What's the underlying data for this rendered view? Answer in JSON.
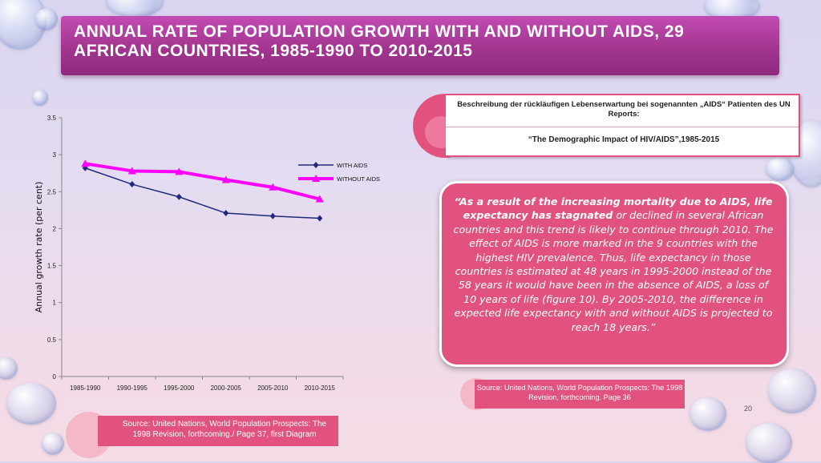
{
  "slide": {
    "title": "ANNUAL RATE OF POPULATION GROWTH WITH AND WITHOUT AIDS, 29 AFRICAN COUNTRIES, 1985-1990 TO 2010-2015",
    "page_number": "20"
  },
  "description": {
    "line1": "Beschreibung der rückläufigen Lebenserwartung bei sogenannten „AIDS“ Patienten des UN Reports:",
    "line2": "“The Demographic Impact of HIV/AIDS”,1985-2015"
  },
  "quote": {
    "bold_part": "“As a result of the increasing mortality due to AIDS, life expectancy has stagnated",
    "rest": " or declined in several African countries and this trend is likely to continue through 2010.  The effect of AIDS is more marked in the 9 countries with the highest HIV prevalence.  Thus, life expectancy in those countries is estimated at 48 years in 1995-2000 instead of the 58 years it would have been in the absence of AIDS, a loss of 10 years of life (figure 10).  By 2005-2010, the difference in expected life expectancy with and without AIDS is projected to reach 18 years.”"
  },
  "sources": {
    "right": "Source: United Nations, World Population Prospects: The 1998 Revision, forthcoming. Page 36",
    "left": "Source: United Nations, World Population Prospects: The 1998 Revision, forthcoming./ Page 37, first Diagram"
  },
  "colors": {
    "title_bar": "#a2358f",
    "accent_pink": "#e2527e",
    "with_aids": "#1f2a7a",
    "without_aids": "#ff00ff"
  },
  "chart_data": {
    "type": "line",
    "categories": [
      "1985-1990",
      "1990-1995",
      "1995-2000",
      "2000-2005",
      "2005-2010",
      "2010-2015"
    ],
    "series": [
      {
        "name": "WITH AIDS",
        "values": [
          2.82,
          2.6,
          2.43,
          2.21,
          2.17,
          2.14
        ],
        "color": "#1f2a7a",
        "marker": "diamond"
      },
      {
        "name": "WITHOUT AIDS",
        "values": [
          2.88,
          2.78,
          2.77,
          2.66,
          2.56,
          2.4
        ],
        "color": "#ff00ff",
        "marker": "triangle"
      }
    ],
    "ylabel": "Annual growth rate (per cent)",
    "xlabel": "",
    "ylim": [
      0,
      3.5
    ],
    "yticks": [
      "0",
      "0.5",
      "1",
      "1.5",
      "2",
      "2.5",
      "3",
      "3.5"
    ],
    "legend_position": "top-right",
    "grid": false
  }
}
